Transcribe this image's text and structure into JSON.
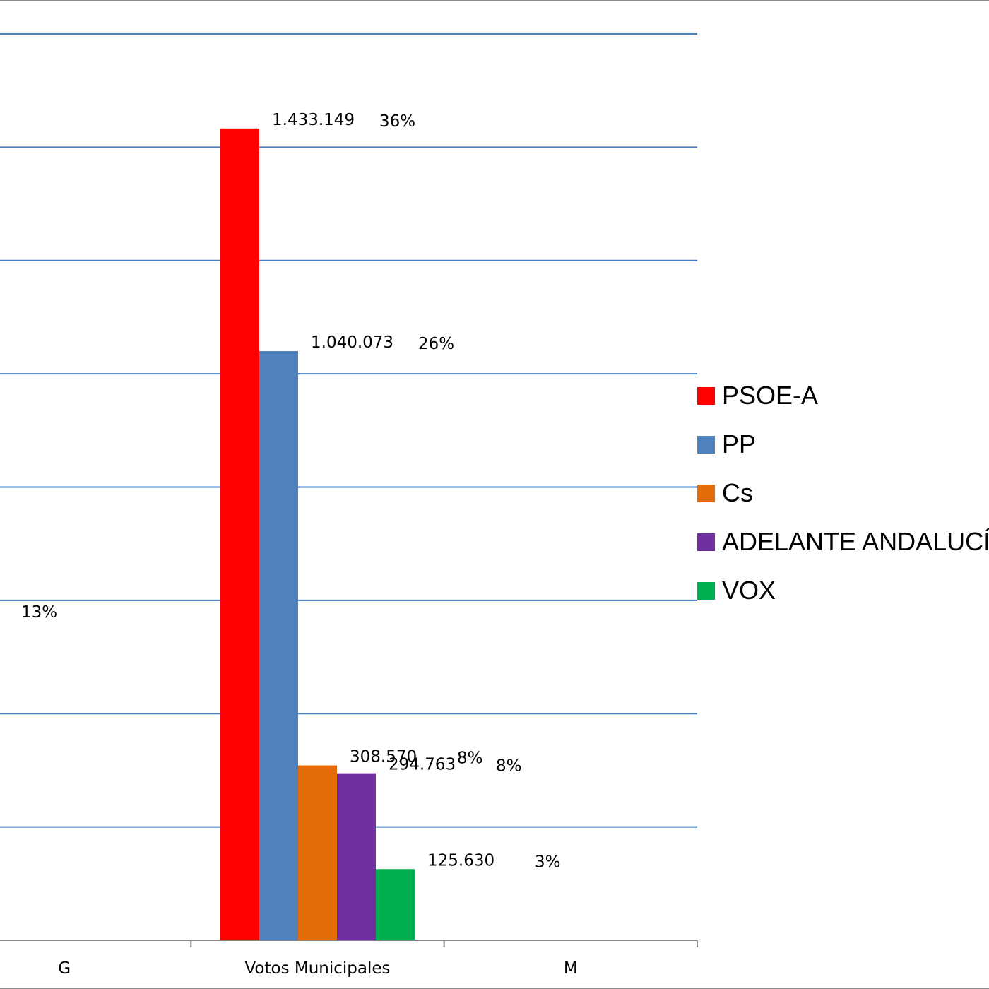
{
  "chart_data": {
    "type": "bar",
    "title": "",
    "xlabel": "",
    "ylabel": "",
    "categories": [
      "G",
      "Votos Municipales",
      "M"
    ],
    "ylim": [
      0,
      1600000
    ],
    "y_gridline_step": 200000,
    "grid": true,
    "legend_position": "right",
    "series": [
      {
        "name": "PSOE-A",
        "color": "#FF0000",
        "values": [
          null,
          1433149,
          null
        ],
        "value_labels": [
          "",
          "1.433.149",
          ""
        ],
        "percent_labels": [
          "",
          "36%",
          ""
        ]
      },
      {
        "name": "PP",
        "color": "#4F81BD",
        "values": [
          null,
          1040073,
          null
        ],
        "value_labels": [
          "",
          "1.040.073",
          ""
        ],
        "percent_labels": [
          "",
          "26%",
          ""
        ]
      },
      {
        "name": "Cs",
        "color": "#E36C09",
        "values": [
          null,
          308570,
          null
        ],
        "value_labels": [
          "",
          "308.570",
          ""
        ],
        "percent_labels": [
          "",
          "8%",
          ""
        ]
      },
      {
        "name": "ADELANTE ANDALUCÍA",
        "color": "#7030A0",
        "values": [
          null,
          294763,
          null
        ],
        "value_labels": [
          "",
          "294.763",
          ""
        ],
        "percent_labels": [
          "",
          "8%",
          ""
        ]
      },
      {
        "name": "VOX",
        "color": "#00B050",
        "values": [
          null,
          125630,
          null
        ],
        "value_labels": [
          "",
          "125.630",
          ""
        ],
        "percent_labels": [
          "",
          "3%",
          ""
        ]
      }
    ],
    "annotations": [
      {
        "text": "13%",
        "category": "G",
        "y": 570000
      }
    ]
  }
}
